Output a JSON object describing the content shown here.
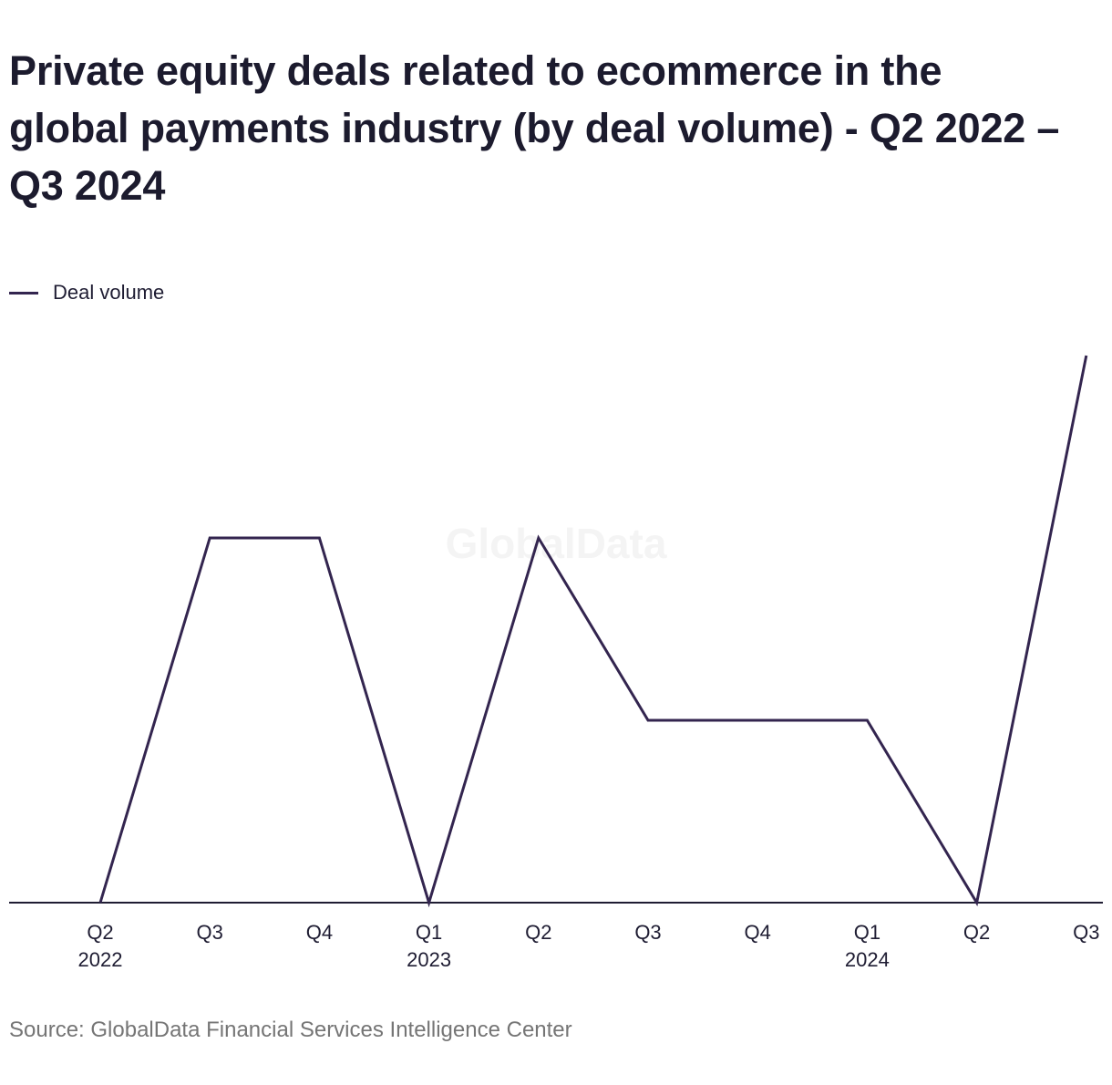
{
  "title": "Private equity deals related to ecommerce in the global payments industry (by deal volume) - Q2 2022 – Q3 2024",
  "watermark": "GlobalData",
  "source": "Source: GlobalData Financial Services Intelligence Center",
  "colors": {
    "line": "#33254f",
    "axis": "#1f1d33",
    "text": "#1f1d33",
    "source": "#757575",
    "watermark": "#f4f4f4"
  },
  "chart_data": {
    "type": "line",
    "title": "Private equity deals related to ecommerce in the global payments industry (by deal volume) - Q2 2022 – Q3 2024",
    "xlabel": "",
    "ylabel": "",
    "categories": [
      [
        "Q2",
        "2022"
      ],
      [
        "Q3",
        ""
      ],
      [
        "Q4",
        ""
      ],
      [
        "Q1",
        "2023"
      ],
      [
        "Q2",
        ""
      ],
      [
        "Q3",
        ""
      ],
      [
        "Q4",
        ""
      ],
      [
        "Q1",
        "2024"
      ],
      [
        "Q2",
        ""
      ],
      [
        "Q3",
        ""
      ]
    ],
    "series": [
      {
        "name": "Deal volume",
        "values": [
          0,
          2,
          2,
          0,
          2,
          1,
          1,
          1,
          0,
          3
        ]
      }
    ],
    "ylim": [
      0,
      3
    ],
    "grid": false,
    "y_tick_labels_visible": false,
    "legend_position": "top-left"
  }
}
